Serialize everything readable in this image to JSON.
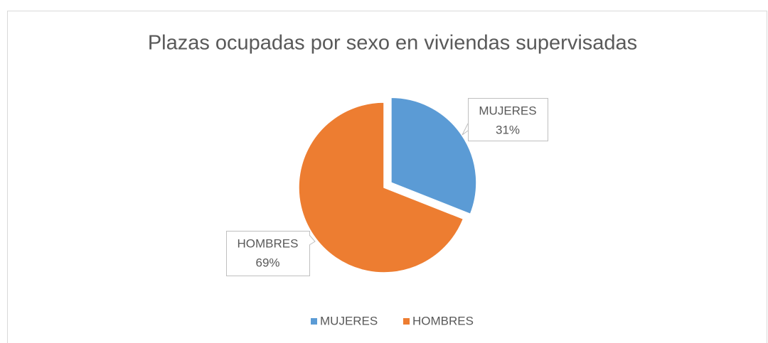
{
  "chart_data": {
    "type": "pie",
    "title": "Plazas ocupadas por sexo en viviendas supervisadas",
    "categories": [
      "MUJERES",
      "HOMBRES"
    ],
    "values": [
      31,
      69
    ],
    "value_labels": [
      "31%",
      "69%"
    ],
    "colors": [
      "#5b9bd5",
      "#ed7d31"
    ],
    "legend": "bottom"
  }
}
